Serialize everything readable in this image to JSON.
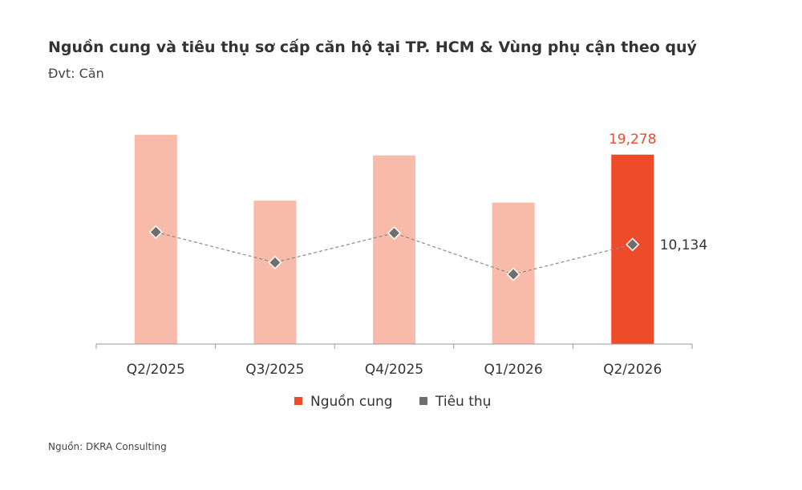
{
  "title": "Nguồn cung và tiêu thụ sơ cấp căn hộ tại TP. HCM & Vùng phụ cận theo quý",
  "unit": "Đvt: Căn",
  "source": "Nguồn: DKRA Consulting",
  "colors": {
    "supply": "#F8BBAA",
    "supply_highlight": "#EE4B2B",
    "consumption": "#6E6E6E",
    "axis": "#9A9A9A"
  },
  "chart_data": {
    "type": "bar",
    "categories": [
      "Q2/2025",
      "Q3/2025",
      "Q4/2025",
      "Q1/2026",
      "Q2/2026"
    ],
    "ylim": [
      0,
      24000
    ],
    "series": [
      {
        "name": "Nguồn cung",
        "type": "bar",
        "values": [
          21300,
          14600,
          19200,
          14400,
          19278
        ],
        "highlight_index": 4,
        "labels": [
          "",
          "",
          "",
          "",
          "19,278"
        ]
      },
      {
        "name": "Tiêu thụ",
        "type": "line",
        "values": [
          11400,
          8300,
          11300,
          7100,
          10134
        ],
        "labels": [
          "",
          "",
          "",
          "",
          "10,134"
        ]
      }
    ],
    "legend": [
      "Nguồn cung",
      "Tiêu thụ"
    ],
    "legend_position": "bottom",
    "grid": false
  }
}
